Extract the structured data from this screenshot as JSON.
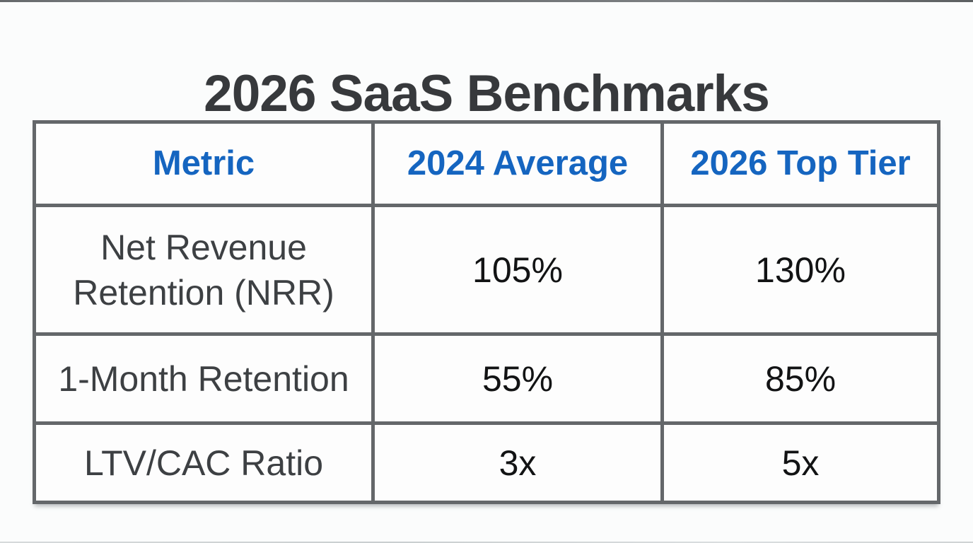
{
  "page": {
    "title": "2026 SaaS Benchmarks",
    "background_color": "#fbfcfc"
  },
  "colors": {
    "title_text": "#37393c",
    "header_text": "#1565c0",
    "metric_text": "#3d4043",
    "value_text": "#121314",
    "table_border": "#64676a",
    "cell_background": "#fdfdfd"
  },
  "chart_data": {
    "type": "table",
    "title": "2026 SaaS Benchmarks",
    "columns": [
      "Metric",
      "2024 Average",
      "2026 Top Tier"
    ],
    "rows": [
      {
        "metric": "Net Revenue Retention (NRR)",
        "values": [
          "105%",
          "130%"
        ]
      },
      {
        "metric": "1-Month Retention",
        "values": [
          "55%",
          "85%"
        ]
      },
      {
        "metric": "LTV/CAC Ratio",
        "values": [
          "3x",
          "5x"
        ]
      }
    ]
  }
}
